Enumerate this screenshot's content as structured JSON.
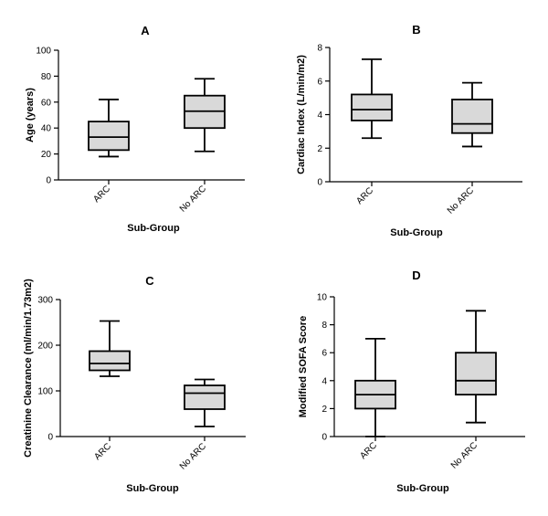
{
  "chart_data": [
    {
      "id": "A",
      "type": "boxplot",
      "title": "A",
      "xlabel": "Sub-Group",
      "ylabel": "Age (years)",
      "ylim": [
        0,
        100
      ],
      "yticks": [
        0,
        20,
        40,
        60,
        80,
        100
      ],
      "categories": [
        "ARC",
        "No ARC"
      ],
      "boxes": [
        {
          "name": "ARC",
          "min": 18,
          "q1": 23,
          "median": 33,
          "q3": 45,
          "max": 62
        },
        {
          "name": "No ARC",
          "min": 22,
          "q1": 40,
          "median": 53,
          "q3": 65,
          "max": 78
        }
      ]
    },
    {
      "id": "B",
      "type": "boxplot",
      "title": "B",
      "xlabel": "Sub-Group",
      "ylabel": "Cardiac Index (L/min/m2)",
      "ylim": [
        0,
        8
      ],
      "yticks": [
        0,
        2,
        4,
        6,
        8
      ],
      "categories": [
        "ARC",
        "No ARC"
      ],
      "boxes": [
        {
          "name": "ARC",
          "min": 2.6,
          "q1": 3.65,
          "median": 4.3,
          "q3": 5.2,
          "max": 7.3
        },
        {
          "name": "No ARC",
          "min": 2.1,
          "q1": 2.9,
          "median": 3.45,
          "q3": 4.9,
          "max": 5.9
        }
      ]
    },
    {
      "id": "C",
      "type": "boxplot",
      "title": "C",
      "xlabel": "Sub-Group",
      "ylabel": "Creatinine Clearance (ml/min/1.73m2)",
      "ylim": [
        0,
        300
      ],
      "yticks": [
        0,
        100,
        200,
        300
      ],
      "categories": [
        "ARC",
        "No ARC"
      ],
      "boxes": [
        {
          "name": "ARC",
          "min": 132,
          "q1": 145,
          "median": 160,
          "q3": 187,
          "max": 253
        },
        {
          "name": "No ARC",
          "min": 22,
          "q1": 60,
          "median": 95,
          "q3": 112,
          "max": 125
        }
      ]
    },
    {
      "id": "D",
      "type": "boxplot",
      "title": "D",
      "xlabel": "Sub-Group",
      "ylabel": "Modified SOFA Score",
      "ylim": [
        0,
        10
      ],
      "yticks": [
        0,
        2,
        4,
        6,
        8,
        10
      ],
      "categories": [
        "ARC",
        "No ARC"
      ],
      "boxes": [
        {
          "name": "ARC",
          "min": 0,
          "q1": 2,
          "median": 3,
          "q3": 4,
          "max": 7
        },
        {
          "name": "No ARC",
          "min": 1,
          "q1": 3,
          "median": 4,
          "q3": 6,
          "max": 9
        }
      ]
    }
  ]
}
